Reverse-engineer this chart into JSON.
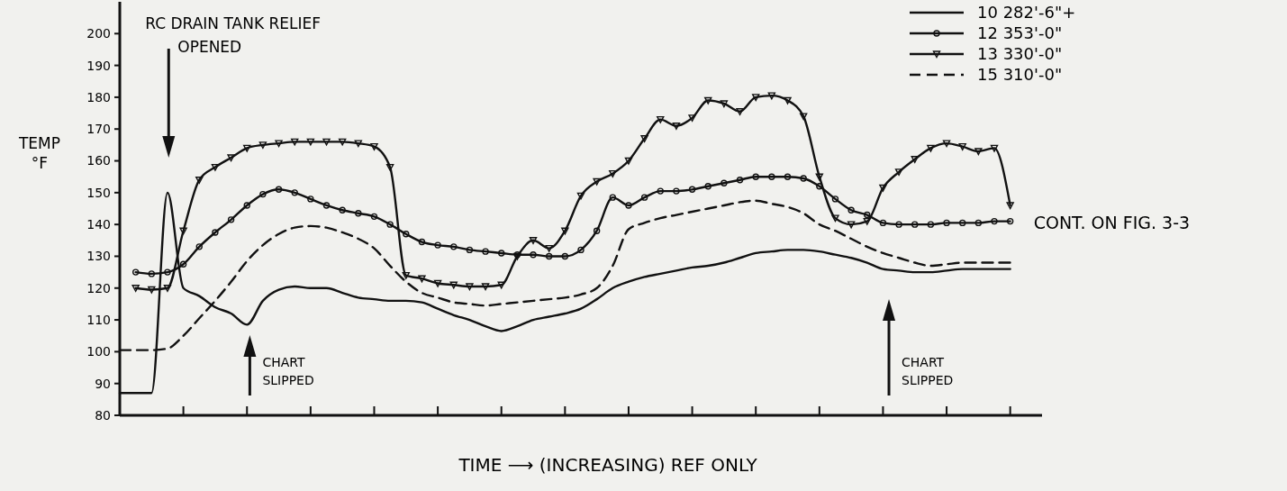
{
  "chart_data": {
    "type": "line",
    "xlabel": "TIME ⟶ (INCREASING) REF ONLY",
    "ylabel": "TEMP\n°F",
    "categories": [
      null,
      null,
      null,
      null,
      null,
      null,
      null,
      null,
      null,
      null,
      null,
      null,
      null,
      null,
      null,
      null,
      null,
      null,
      null,
      null,
      null,
      null,
      null,
      null,
      null,
      null,
      null,
      null,
      null,
      null,
      null,
      null,
      null,
      null,
      null,
      null,
      null,
      null,
      null,
      null,
      null,
      null,
      null,
      null,
      null,
      null,
      null,
      null,
      null,
      null,
      null,
      null,
      null,
      null,
      null,
      null,
      null
    ],
    "ylim": [
      80,
      210
    ],
    "yticks": [
      80,
      90,
      100,
      110,
      120,
      130,
      140,
      150,
      160,
      170,
      180,
      190,
      200
    ],
    "grid": false,
    "legend": "top right",
    "series": [
      {
        "name": "10 282'-6\"+",
        "color": "#111111",
        "marker": "none",
        "line_style": "solid",
        "values": [
          87,
          87,
          87,
          150,
          120,
          117.5,
          114,
          112,
          108.5,
          116,
          119.5,
          120.5,
          120,
          120,
          118.5,
          117,
          116.5,
          116,
          116,
          115.5,
          113.5,
          111.5,
          110,
          108,
          106.5,
          108,
          110,
          111,
          112,
          113.5,
          116.5,
          120,
          122,
          123.5,
          124.5,
          125.5,
          126.5,
          127,
          128,
          129.5,
          131,
          131.5,
          132,
          132,
          131.5,
          130.5,
          129.5,
          128,
          126,
          125.5,
          125,
          125,
          125.5,
          126,
          126,
          126,
          126
        ]
      },
      {
        "name": "12 353'-0\"",
        "color": "#111111",
        "marker": "circle",
        "line_style": "solid",
        "values": [
          null,
          125,
          124.5,
          125,
          127.5,
          133,
          137.5,
          141.5,
          146,
          149.5,
          151,
          150,
          148,
          146,
          144.5,
          143.5,
          142.5,
          140,
          137,
          134.5,
          133.5,
          133,
          132,
          131.5,
          131,
          130.5,
          130.5,
          130,
          130,
          132,
          138,
          148.5,
          146,
          148.5,
          150.5,
          150.5,
          151,
          152,
          153,
          154,
          155,
          155,
          155,
          154.5,
          152,
          148,
          144.5,
          143,
          140.5,
          140,
          140,
          140,
          140.5,
          140.5,
          140.5,
          141,
          141
        ]
      },
      {
        "name": "13 330'-0\"",
        "color": "#111111",
        "marker": "triangle",
        "line_style": "solid",
        "values": [
          null,
          120,
          119.5,
          120,
          138,
          154,
          158,
          161,
          164,
          165,
          165.5,
          166,
          166,
          166,
          166,
          165.5,
          164.5,
          158,
          124,
          123,
          121.5,
          121,
          120.5,
          120.5,
          121,
          130,
          135,
          132.5,
          138,
          149,
          153.5,
          156,
          160,
          167,
          173,
          171,
          173.5,
          179,
          178,
          175.5,
          180,
          180.5,
          179,
          174,
          155,
          142,
          140,
          141,
          151.5,
          156.5,
          160.5,
          164,
          165.5,
          164.5,
          163,
          164,
          146
        ]
      },
      {
        "name": "15 310'-0\"",
        "color": "#111111",
        "marker": "none",
        "line_style": "dashed",
        "values": [
          100.5,
          100.5,
          100.5,
          101,
          105,
          110.5,
          116,
          122,
          128.5,
          133.5,
          137,
          139,
          139.5,
          139,
          137.5,
          135.5,
          132.5,
          127,
          122,
          118.5,
          117,
          115.5,
          115,
          114.5,
          115,
          115.5,
          116,
          116.5,
          117,
          118,
          120,
          127,
          138.5,
          140.5,
          142,
          143,
          144,
          145,
          146,
          147,
          147.5,
          146.5,
          145.5,
          143.5,
          140,
          138,
          135.5,
          133,
          131,
          129.5,
          128,
          127,
          127.5,
          128,
          128,
          128,
          128
        ]
      }
    ],
    "annotations": [
      "RC DRAIN TANK RELIEF\nOPENED",
      "CHART\nSLIPPED",
      "CHART\nSLIPPED",
      "CONT. ON FIG. 3-3"
    ]
  }
}
